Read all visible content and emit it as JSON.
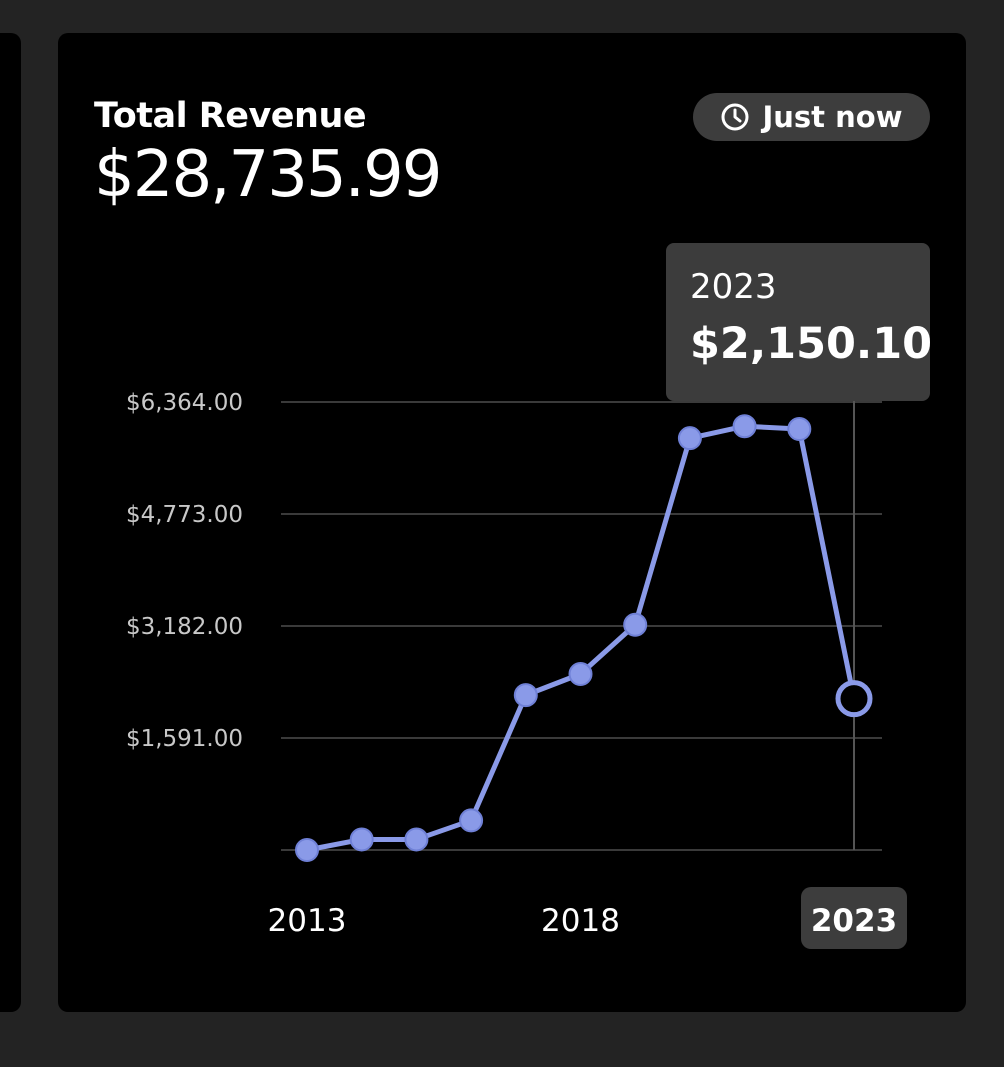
{
  "card": {
    "title": "Total Revenue",
    "value": "$28,735.99",
    "time_label": "Just now"
  },
  "tooltip": {
    "year": "2023",
    "value": "$2,150.10"
  },
  "colors": {
    "line": "#8a9ae8",
    "grid": "#3a3a3a",
    "selected_bg": "#3d3d3d"
  },
  "chart_data": {
    "type": "line",
    "x": [
      2013,
      2014,
      2015,
      2016,
      2017,
      2018,
      2019,
      2020,
      2021,
      2022,
      2023
    ],
    "values": [
      0,
      150,
      150,
      420,
      2200,
      2500,
      3200,
      5850,
      6020,
      5980,
      2150.1
    ],
    "x_tick_labels": [
      {
        "x": 2013,
        "label": "2013"
      },
      {
        "x": 2018,
        "label": "2018"
      },
      {
        "x": 2023,
        "label": "2023"
      }
    ],
    "y_ticks": [
      {
        "value": 1591,
        "label": "$1,591.00"
      },
      {
        "value": 3182,
        "label": "$3,182.00"
      },
      {
        "value": 4773,
        "label": "$4,773.00"
      },
      {
        "value": 6364,
        "label": "$6,364.00"
      }
    ],
    "ylim": [
      0,
      6364
    ],
    "xlim": [
      2013,
      2023
    ],
    "selected_x": 2023,
    "title": "",
    "xlabel": "",
    "ylabel": "",
    "grid": true
  }
}
